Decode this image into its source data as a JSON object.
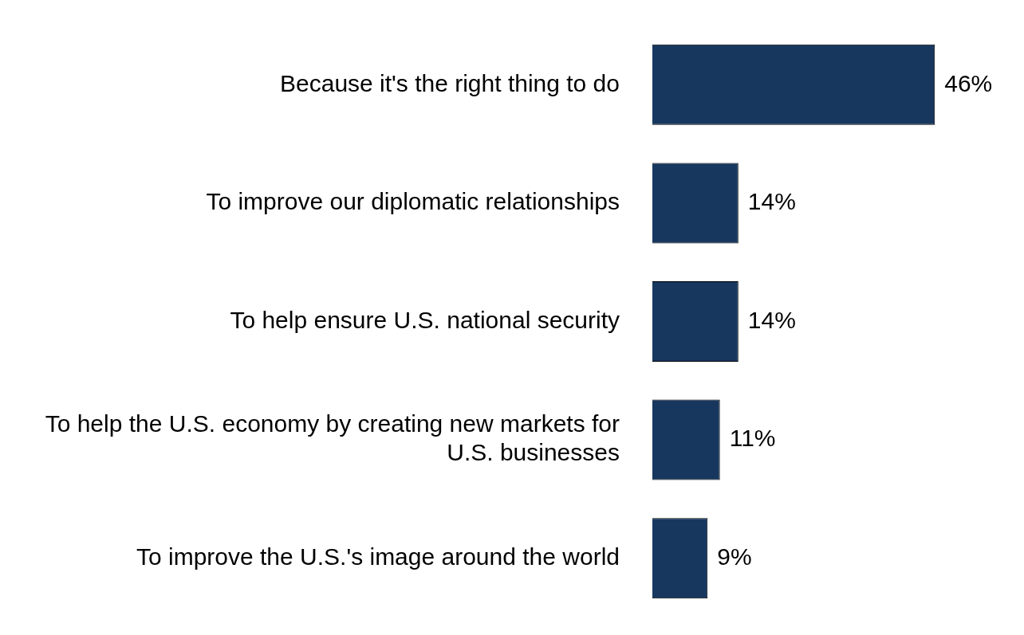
{
  "chart_data": {
    "type": "bar",
    "orientation": "horizontal",
    "categories": [
      "Because it's the right thing to do",
      "To improve our diplomatic relationships",
      "To help ensure U.S. national security",
      "To help the U.S. economy by creating new markets for U.S. businesses",
      "To improve the U.S.'s image around the world"
    ],
    "values": [
      46,
      14,
      14,
      11,
      9
    ],
    "value_labels": [
      "46%",
      "14%",
      "14%",
      "11%",
      "9%"
    ],
    "color": "#17375e",
    "legend": false
  }
}
